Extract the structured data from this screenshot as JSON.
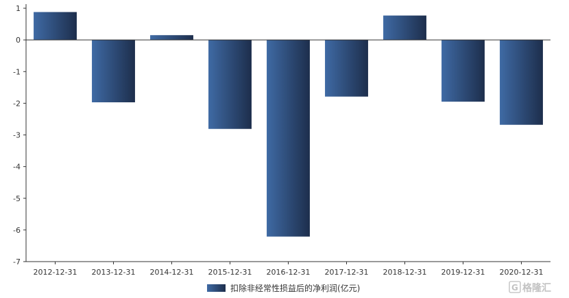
{
  "chart_data": {
    "type": "bar",
    "title": "",
    "xlabel": "",
    "ylabel": "",
    "categories": [
      "2012-12-31",
      "2013-12-31",
      "2014-12-31",
      "2015-12-31",
      "2016-12-31",
      "2017-12-31",
      "2018-12-31",
      "2019-12-31",
      "2020-12-31"
    ],
    "series": [
      {
        "name": "扣除非经常性损益后的净利润(亿元)",
        "values": [
          0.88,
          -1.97,
          0.15,
          -2.81,
          -6.21,
          -1.79,
          0.77,
          -1.95,
          -2.68
        ]
      }
    ],
    "ylim": [
      -7,
      1
    ],
    "yticks": [
      "1",
      "0",
      "-1",
      "-2",
      "-3",
      "-4",
      "-5",
      "-6",
      "-7"
    ],
    "grid": false,
    "legend_position": "bottom",
    "colors": {
      "bar_light": "#3f6aa4",
      "bar_dark": "#1d2e4c",
      "axis": "#333333"
    }
  },
  "watermark": {
    "icon": "gelonghui-logo-icon",
    "glyph": "G",
    "text": "格隆汇"
  }
}
